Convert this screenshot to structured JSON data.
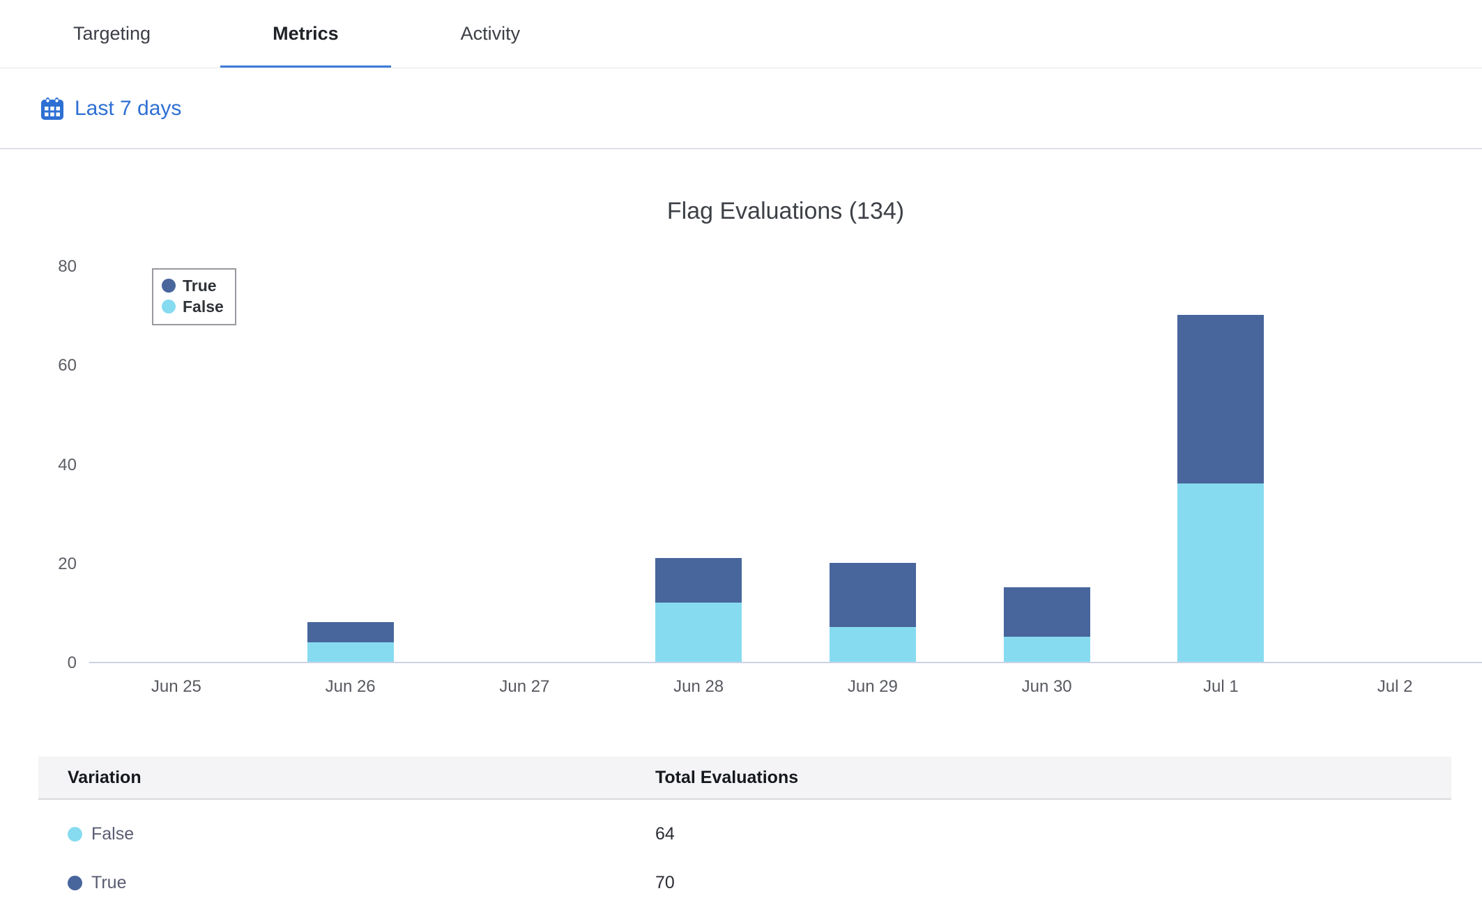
{
  "tabs": {
    "items": [
      {
        "label": "Targeting",
        "active": false
      },
      {
        "label": "Metrics",
        "active": true
      },
      {
        "label": "Activity",
        "active": false
      }
    ]
  },
  "filter": {
    "date_range_label": "Last 7 days"
  },
  "chart_data": {
    "type": "bar",
    "stacked": true,
    "title": "Flag Evaluations (134)",
    "total_evaluations": 134,
    "categories": [
      "Jun 25",
      "Jun 26",
      "Jun 27",
      "Jun 28",
      "Jun 29",
      "Jun 30",
      "Jul 1",
      "Jul 2"
    ],
    "series": [
      {
        "name": "True",
        "color": "#48659c",
        "values": [
          0,
          4,
          0,
          9,
          13,
          10,
          34,
          0
        ]
      },
      {
        "name": "False",
        "color": "#87dbf0",
        "values": [
          0,
          4,
          0,
          12,
          7,
          5,
          36,
          0
        ]
      }
    ],
    "ylim": [
      0,
      80
    ],
    "yticks": [
      0,
      20,
      40,
      60,
      80
    ],
    "xlabel": "",
    "ylabel": "",
    "legend_position": "top-left",
    "grid": false
  },
  "table": {
    "columns": [
      "Variation",
      "Total Evaluations"
    ],
    "rows": [
      {
        "label": "False",
        "color": "#87dbf0",
        "value": "64"
      },
      {
        "label": "True",
        "color": "#48659c",
        "value": "70"
      }
    ]
  },
  "colors": {
    "accent_blue": "#2e6fd3",
    "tab_underline": "#3d7cd9",
    "bar_true": "#48659c",
    "bar_false": "#87dbf0",
    "axis_line": "#ccd3e6",
    "table_header_bg": "#f4f4f6"
  }
}
